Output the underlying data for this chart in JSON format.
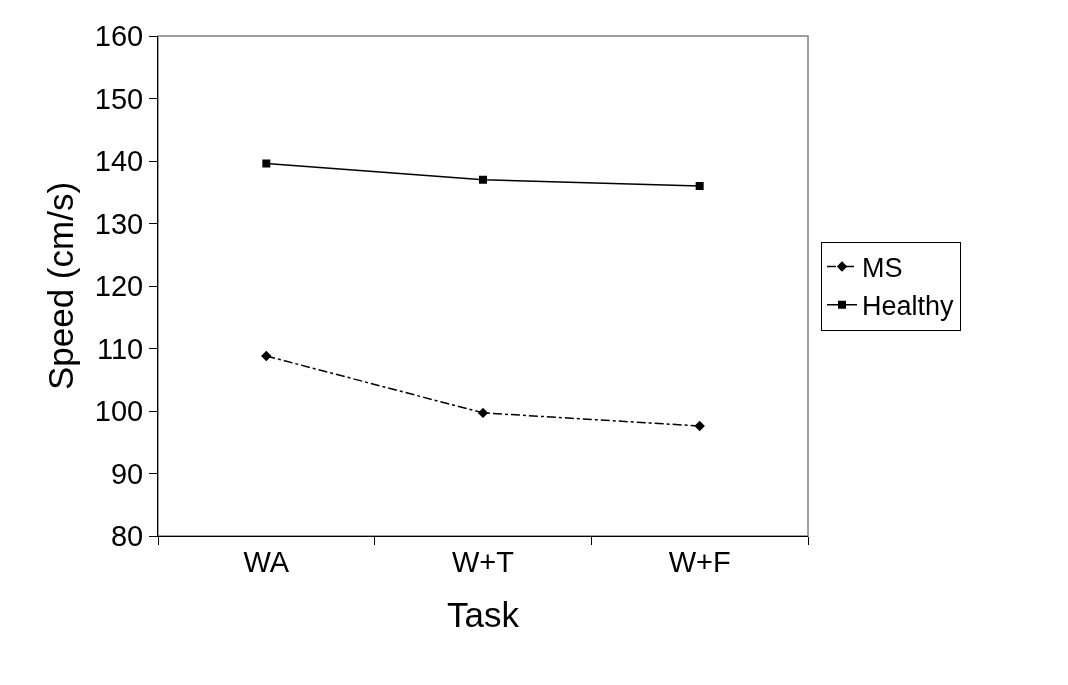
{
  "chart_data": {
    "type": "line",
    "xlabel": "Task",
    "ylabel": "Speed (cm/s)",
    "categories": [
      "WA",
      "W+T",
      "W+F"
    ],
    "series": [
      {
        "name": "MS",
        "color": "#000000",
        "values": [
          108.8,
          99.7,
          97.6
        ],
        "marker": "diamond",
        "line_style": "dashdot"
      },
      {
        "name": "Healthy",
        "color": "#000000",
        "values": [
          139.6,
          137,
          136
        ],
        "marker": "square",
        "line_style": "solid"
      }
    ],
    "ylim": [
      80,
      160
    ],
    "yticks": [
      80,
      90,
      100,
      110,
      120,
      130,
      140,
      150,
      160
    ],
    "grid": false,
    "legend": "right"
  }
}
